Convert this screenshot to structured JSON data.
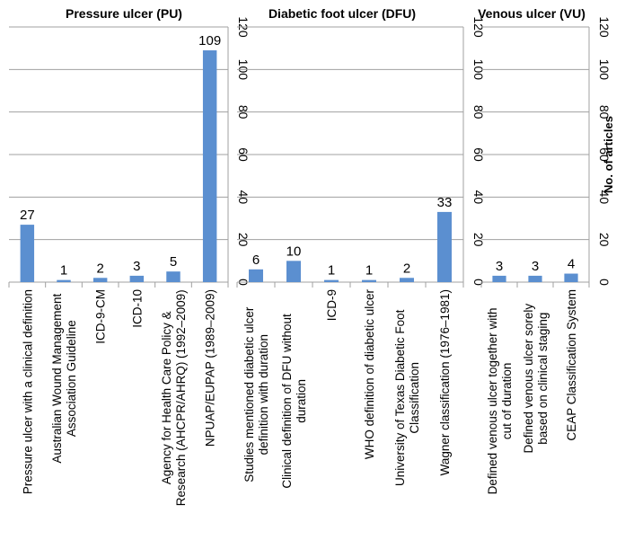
{
  "chart_data": [
    {
      "type": "bar",
      "title": "Pressure ulcer (PU)",
      "categories": [
        "Pressure ulcer with a clinical definition",
        "Australian Wound Management\nAssociation Guideline",
        "ICD-9-CM",
        "ICD-10",
        "Agency for Health Care Policy &\nResearch (AHCPR/AHRQ) (1992–2009)",
        "NPUAP/EUPAP (1989–2009)"
      ],
      "values": [
        27,
        1,
        2,
        3,
        5,
        109
      ],
      "ylim": [
        0,
        120
      ],
      "yticks": [
        "0",
        "20",
        "40",
        "60",
        "80",
        "100",
        "120"
      ],
      "ylabel": "",
      "grid": true,
      "color": "#5B8FD0"
    },
    {
      "type": "bar",
      "title": "Diabetic foot ulcer (DFU)",
      "categories": [
        "Studies mentioned diabetic ulcer\ndefinition with duration",
        "Clinical definition of DFU without\nduration",
        "ICD-9",
        "WHO definition  of diabetic ulcer",
        "University of Texas Diabetic Foot\nClassification",
        "Wagner classification (1976–1981)"
      ],
      "values": [
        6,
        10,
        1,
        1,
        2,
        33
      ],
      "ylim": [
        0,
        120
      ],
      "yticks": [
        "0",
        "20",
        "40",
        "60",
        "80",
        "100",
        "120"
      ],
      "ylabel": "",
      "grid": true,
      "color": "#5B8FD0"
    },
    {
      "type": "bar",
      "title": "Venous ulcer (VU)",
      "categories": [
        "Defined venous ulcer together with\ncut of duration",
        "Defined venous ulcer sorely\nbased on clinical staging",
        "CEAP Classification System"
      ],
      "values": [
        3,
        3,
        4
      ],
      "ylim": [
        0,
        120
      ],
      "yticks": [
        "0",
        "20",
        "40",
        "60",
        "80",
        "100",
        "120"
      ],
      "ylabel": "No. of articles",
      "grid": true,
      "color": "#5B8FD0"
    }
  ]
}
